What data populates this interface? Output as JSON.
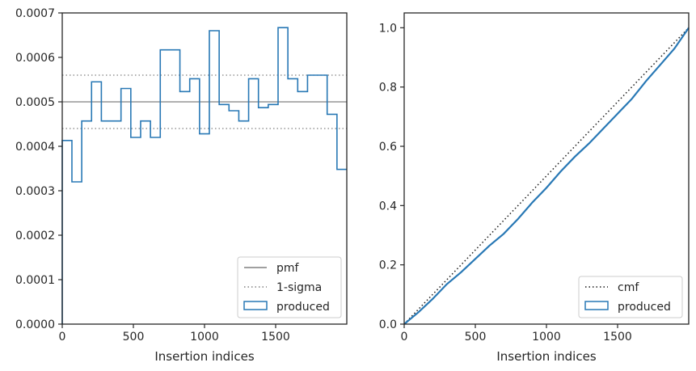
{
  "colors": {
    "produced": "#2878b5",
    "reference": "#808080",
    "cmf": "#1a1a1a",
    "axes": "#262626"
  },
  "chart_data": [
    {
      "type": "line",
      "subtype": "step-histogram",
      "title": "",
      "xlabel": "Insertion indices",
      "ylabel": "",
      "xlim": [
        0,
        2000
      ],
      "ylim": [
        0,
        0.0007
      ],
      "xticks": [
        0,
        500,
        1000,
        1500
      ],
      "xtick_labels": [
        "0",
        "500",
        "1000",
        "1500"
      ],
      "yticks": [
        0,
        0.0001,
        0.0002,
        0.0003,
        0.0004,
        0.0005,
        0.0006,
        0.0007
      ],
      "ytick_labels": [
        "0.0000",
        "0.0001",
        "0.0002",
        "0.0003",
        "0.0004",
        "0.0005",
        "0.0006",
        "0.0007"
      ],
      "grid": false,
      "legend_position": "bottom-right",
      "reference_lines": [
        {
          "name": "pmf",
          "y": 0.0005,
          "style": "solid"
        },
        {
          "name": "1-sigma",
          "y": 0.00056,
          "style": "dotted"
        },
        {
          "name": "1-sigma",
          "y": 0.00044,
          "style": "dotted"
        }
      ],
      "series": [
        {
          "name": "produced",
          "bin_edges": [
            0,
            68,
            137,
            206,
            275,
            344,
            413,
            482,
            551,
            620,
            689,
            758,
            827,
            896,
            965,
            1034,
            1103,
            1172,
            1241,
            1310,
            1379,
            1448,
            1517,
            1586,
            1655,
            1724,
            1793,
            1862,
            1931,
            2000
          ],
          "values": [
            0.000413,
            0.00032,
            0.000457,
            0.000545,
            0.000457,
            0.000457,
            0.00053,
            0.00042,
            0.000457,
            0.00042,
            0.000617,
            0.000617,
            0.000523,
            0.000552,
            0.000428,
            0.00066,
            0.000494,
            0.00048,
            0.000457,
            0.000552,
            0.000487,
            0.000494,
            0.000667,
            0.000552,
            0.000523,
            0.00056,
            0.00056,
            0.000472,
            0.000348
          ]
        }
      ]
    },
    {
      "type": "line",
      "subtype": "cumulative",
      "title": "",
      "xlabel": "Insertion indices",
      "ylabel": "",
      "xlim": [
        0,
        2000
      ],
      "ylim": [
        0,
        1.05
      ],
      "xticks": [
        0,
        500,
        1000,
        1500
      ],
      "xtick_labels": [
        "0",
        "500",
        "1000",
        "1500"
      ],
      "yticks": [
        0,
        0.2,
        0.4,
        0.6,
        0.8,
        1.0
      ],
      "ytick_labels": [
        "0.0",
        "0.2",
        "0.4",
        "0.6",
        "0.8",
        "1.0"
      ],
      "grid": false,
      "legend_position": "bottom-right",
      "series": [
        {
          "name": "cmf",
          "style": "dotted",
          "x": [
            0,
            2000
          ],
          "y": [
            0,
            1.0
          ]
        },
        {
          "name": "produced",
          "style": "solid",
          "x": [
            0,
            100,
            200,
            300,
            400,
            500,
            600,
            700,
            800,
            900,
            1000,
            1100,
            1200,
            1300,
            1400,
            1500,
            1600,
            1700,
            1800,
            1900,
            2000
          ],
          "y": [
            0,
            0.04,
            0.085,
            0.135,
            0.175,
            0.22,
            0.265,
            0.305,
            0.355,
            0.41,
            0.46,
            0.515,
            0.565,
            0.61,
            0.66,
            0.71,
            0.76,
            0.82,
            0.875,
            0.93,
            1.0
          ]
        }
      ]
    }
  ]
}
